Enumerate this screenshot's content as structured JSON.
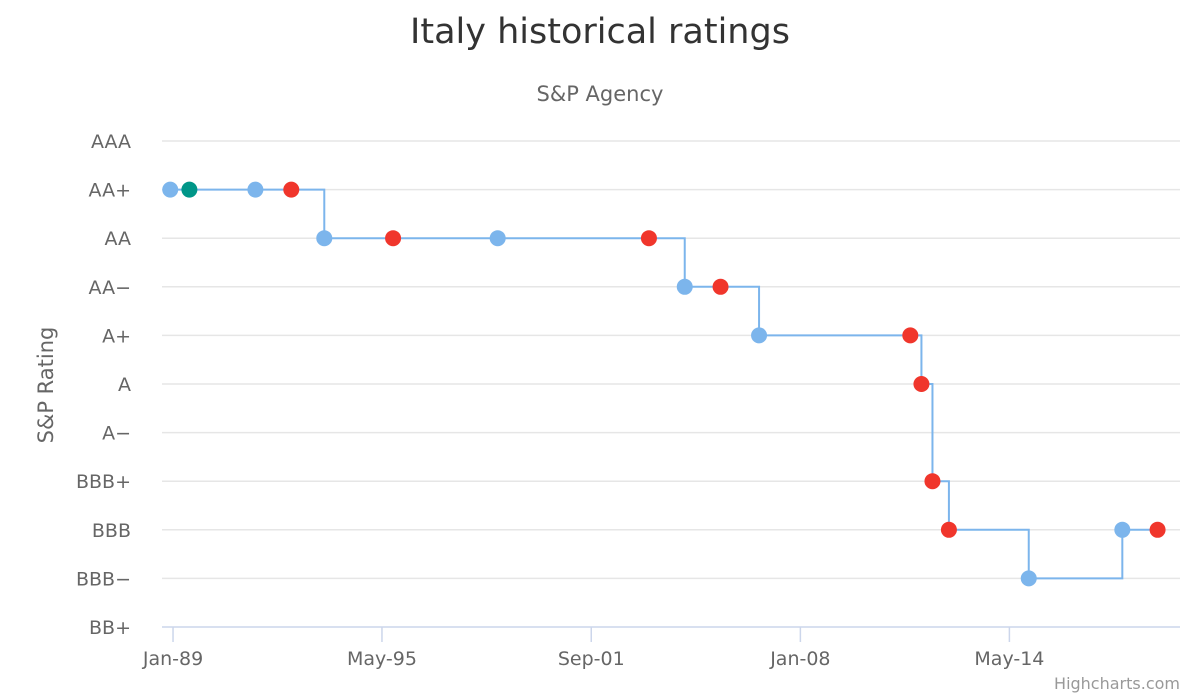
{
  "chart_data": {
    "type": "line",
    "step": true,
    "title": "Italy historical ratings",
    "subtitle": "S&P Agency",
    "ylabel": "S&P Rating",
    "y_categories": [
      "BB+",
      "BBB−",
      "BBB",
      "BBB+",
      "A−",
      "A",
      "A+",
      "AA−",
      "AA",
      "AA+",
      "AAA"
    ],
    "x_tick_labels": [
      "Jan-89",
      "May-95",
      "Sep-01",
      "Jan-08",
      "May-14"
    ],
    "x_ticks": [
      "1989-01-01",
      "1995-05-01",
      "2001-09-01",
      "2008-01-01",
      "2014-05-01"
    ],
    "x_range": [
      "1988-09-01",
      "2019-07-01"
    ],
    "grid": true,
    "colors": {
      "line": "#7cb5ec",
      "grid": "#e6e6e6",
      "axis": "#ccd6eb",
      "outlook_stable": "#7cb5ec",
      "outlook_negative": "#f0362c",
      "outlook_positive": "#009688"
    },
    "series": [
      {
        "points": [
          {
            "x": "1988-12-01",
            "y": "AA+",
            "outlook": "stable"
          },
          {
            "x": "1989-07-01",
            "y": "AA+",
            "outlook": "positive"
          },
          {
            "x": "1991-07-01",
            "y": "AA+",
            "outlook": "stable"
          },
          {
            "x": "1992-08-01",
            "y": "AA+",
            "outlook": "negative"
          },
          {
            "x": "1993-08-01",
            "y": "AA",
            "outlook": "stable"
          },
          {
            "x": "1995-09-01",
            "y": "AA",
            "outlook": "negative"
          },
          {
            "x": "1998-11-01",
            "y": "AA",
            "outlook": "stable"
          },
          {
            "x": "2003-06-01",
            "y": "AA",
            "outlook": "negative"
          },
          {
            "x": "2004-07-01",
            "y": "AA−",
            "outlook": "stable"
          },
          {
            "x": "2005-08-01",
            "y": "AA−",
            "outlook": "negative"
          },
          {
            "x": "2006-10-01",
            "y": "A+",
            "outlook": "stable"
          },
          {
            "x": "2011-05-01",
            "y": "A+",
            "outlook": "negative"
          },
          {
            "x": "2011-09-01",
            "y": "A",
            "outlook": "negative"
          },
          {
            "x": "2012-01-01",
            "y": "BBB+",
            "outlook": "negative"
          },
          {
            "x": "2012-07-01",
            "y": "BBB",
            "outlook": "negative"
          },
          {
            "x": "2014-12-01",
            "y": "BBB−",
            "outlook": "stable"
          },
          {
            "x": "2017-10-01",
            "y": "BBB",
            "outlook": "stable"
          },
          {
            "x": "2018-10-26",
            "y": "BBB",
            "outlook": "negative"
          }
        ]
      }
    ]
  },
  "credits": "Highcharts.com"
}
